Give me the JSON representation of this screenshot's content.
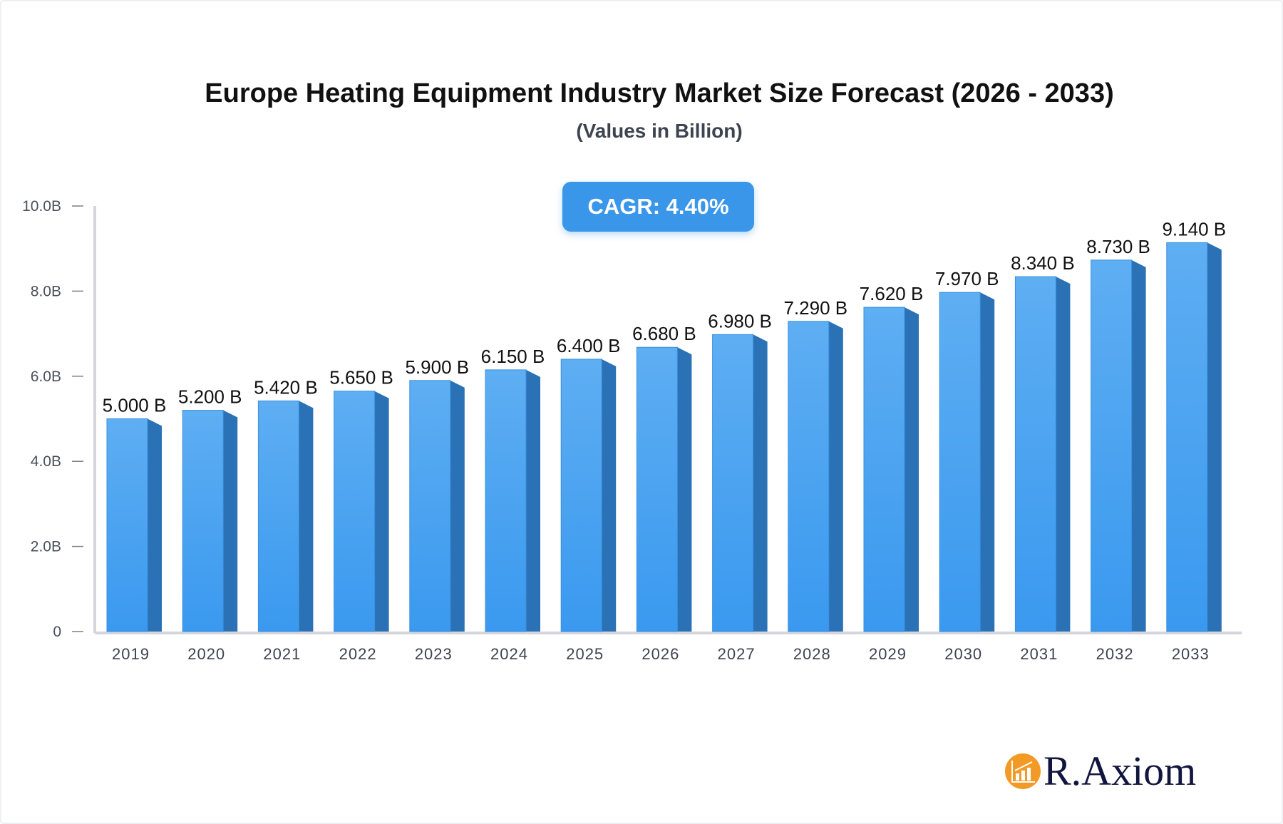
{
  "chart_data": {
    "type": "bar",
    "title": "Europe Heating Equipment Industry Market Size Forecast (2026 - 2033)",
    "subtitle": "(Values in Billion)",
    "annotation": "CAGR: 4.40%",
    "categories": [
      "2019",
      "2020",
      "2021",
      "2022",
      "2023",
      "2024",
      "2025",
      "2026",
      "2027",
      "2028",
      "2029",
      "2030",
      "2031",
      "2032",
      "2033"
    ],
    "values": [
      5.0,
      5.2,
      5.42,
      5.65,
      5.9,
      6.15,
      6.4,
      6.68,
      6.98,
      7.29,
      7.62,
      7.97,
      8.34,
      8.73,
      9.14
    ],
    "data_labels": [
      "5.000 B",
      "5.200 B",
      "5.420 B",
      "5.650 B",
      "5.900 B",
      "6.150 B",
      "6.400 B",
      "6.680 B",
      "6.980 B",
      "7.290 B",
      "7.620 B",
      "7.970 B",
      "8.340 B",
      "8.730 B",
      "9.140 B"
    ],
    "ylim": [
      0,
      10
    ],
    "yticks": [
      0,
      2,
      4,
      6,
      8,
      10
    ],
    "ytick_labels": [
      "0",
      "2.0B",
      "4.0B",
      "6.0B",
      "8.0B",
      "10.0B"
    ],
    "xlabel": "",
    "ylabel": "",
    "grid": false,
    "colors": {
      "bar_top": "#5eaef2",
      "bar_bottom": "#3a99ef",
      "bar_side": "#2a72b5",
      "axis": "#d3d6dd",
      "cagr_bg": "#3a96e8"
    }
  },
  "brand": {
    "name": "R.Axiom",
    "icon": "chart-growth-icon",
    "color": "#f39a26"
  }
}
